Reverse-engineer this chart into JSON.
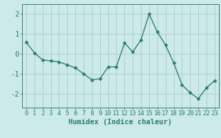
{
  "x": [
    0,
    1,
    2,
    3,
    4,
    5,
    6,
    7,
    8,
    9,
    10,
    11,
    12,
    13,
    14,
    15,
    16,
    17,
    18,
    19,
    20,
    21,
    22,
    23
  ],
  "y": [
    0.6,
    0.05,
    -0.3,
    -0.35,
    -0.4,
    -0.55,
    -0.7,
    -1.0,
    -1.3,
    -1.25,
    -0.65,
    -0.65,
    0.55,
    0.1,
    0.7,
    2.0,
    1.1,
    0.45,
    -0.45,
    -1.55,
    -1.95,
    -2.25,
    -1.7,
    -1.35
  ],
  "line_color": "#2e7d6e",
  "marker": "D",
  "marker_size": 2.5,
  "bg_color": "#cceaea",
  "grid_color": "#b0cece",
  "xlabel": "Humidex (Indice chaleur)",
  "ylim": [
    -2.7,
    2.5
  ],
  "xlim": [
    -0.5,
    23.5
  ],
  "xticks": [
    0,
    1,
    2,
    3,
    4,
    5,
    6,
    7,
    8,
    9,
    10,
    11,
    12,
    13,
    14,
    15,
    16,
    17,
    18,
    19,
    20,
    21,
    22,
    23
  ],
  "yticks": [
    -2,
    -1,
    0,
    1,
    2
  ],
  "tick_color": "#2e7d6e",
  "label_color": "#2e7d6e",
  "xlabel_fontsize": 7.5,
  "tick_fontsize": 6.5,
  "ytick_fontsize": 7.5
}
